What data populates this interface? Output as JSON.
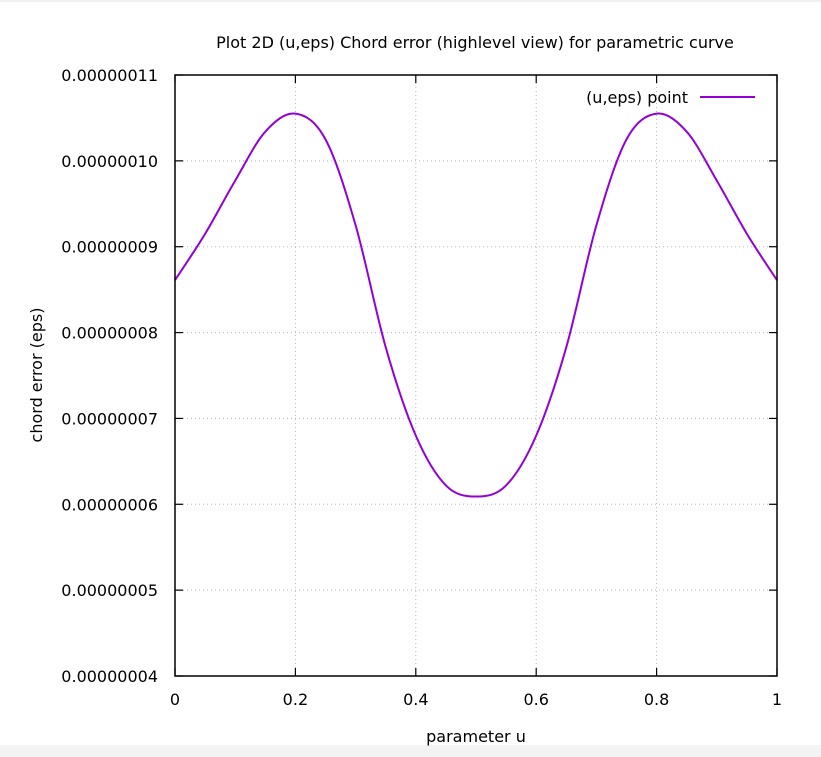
{
  "chart_data": {
    "type": "line",
    "title": "Plot 2D (u,eps) Chord error (highlevel view) for parametric curve",
    "xlabel": "parameter u",
    "ylabel": "chord error (eps)",
    "xlim": [
      0,
      1
    ],
    "ylim": [
      4e-08,
      1.1e-07
    ],
    "x_ticks": [
      "0",
      "0.2",
      "0.4",
      "0.6",
      "0.8",
      "1"
    ],
    "x_tick_values": [
      0,
      0.2,
      0.4,
      0.6,
      0.8,
      1
    ],
    "y_ticks": [
      "0.00000004",
      "0.00000005",
      "0.00000006",
      "0.00000007",
      "0.00000008",
      "0.00000009",
      "0.00000010",
      "0.00000011"
    ],
    "y_tick_values": [
      4e-08,
      5e-08,
      6e-08,
      7e-08,
      8e-08,
      9e-08,
      1e-07,
      1.1e-07
    ],
    "grid": true,
    "legend_position": "top-right",
    "series": [
      {
        "name": "(u,eps) point",
        "color": "#9400d3",
        "x": [
          0,
          0.05,
          0.1,
          0.15,
          0.2,
          0.25,
          0.3,
          0.35,
          0.4,
          0.45,
          0.5,
          0.55,
          0.6,
          0.65,
          0.7,
          0.75,
          0.8,
          0.85,
          0.9,
          0.95,
          1
        ],
        "y": [
          8.61e-08,
          9.15e-08,
          9.77e-08,
          1.034e-07,
          1.055e-07,
          1.025e-07,
          9.25e-08,
          7.83e-08,
          6.8e-08,
          6.22e-08,
          6.09e-08,
          6.22e-08,
          6.8e-08,
          7.83e-08,
          9.25e-08,
          1.025e-07,
          1.055e-07,
          1.034e-07,
          9.77e-08,
          9.15e-08,
          8.61e-08
        ]
      }
    ]
  }
}
